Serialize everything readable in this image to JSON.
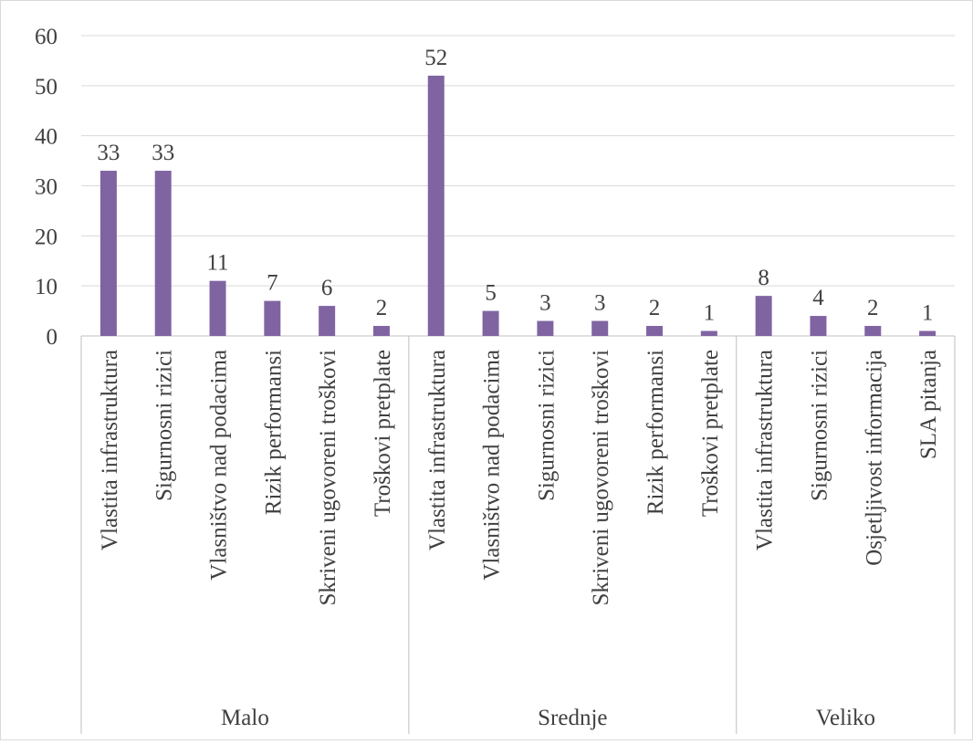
{
  "colors": {
    "bar": "#8064a2",
    "grid": "#d9d9d9",
    "axis": "#bfbfbf",
    "text": "#404040"
  },
  "chart_data": {
    "type": "bar",
    "title": "",
    "xlabel": "",
    "ylabel": "",
    "ylim": [
      0,
      60
    ],
    "yticks": [
      0,
      10,
      20,
      30,
      40,
      50,
      60
    ],
    "grid": true,
    "legend": "none",
    "groups": [
      {
        "name": "Malo",
        "categories": [
          "Vlastita infrastruktura",
          "Sigurnosni rizici",
          "Vlasništvo nad podacima",
          "Rizik performansi",
          "Skriveni ugovoreni troškovi",
          "Troškovi pretplate"
        ],
        "values": [
          33,
          33,
          11,
          7,
          6,
          2
        ]
      },
      {
        "name": "Srednje",
        "categories": [
          "Vlastita infrastruktura",
          "Vlasništvo nad podacima",
          "Sigurnosni rizici",
          "Skriveni ugovoreni troškovi",
          "Rizik performansi",
          "Troškovi pretplate"
        ],
        "values": [
          52,
          5,
          3,
          3,
          2,
          1
        ]
      },
      {
        "name": "Veliko",
        "categories": [
          "Vlastita infrastruktura",
          "Sigurnosni rizici",
          "Osjetljivost informacija",
          "SLA pitanja"
        ],
        "values": [
          8,
          4,
          2,
          1
        ]
      }
    ]
  }
}
